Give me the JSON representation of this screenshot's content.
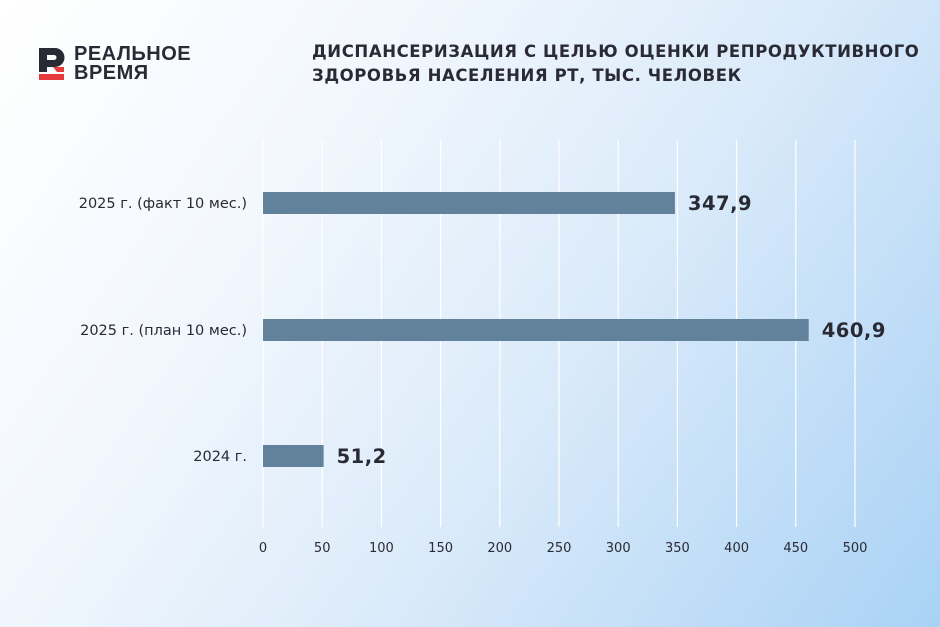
{
  "brand": {
    "line1": "РЕАЛЬНОЕ",
    "line2": "ВРЕМЯ",
    "colors": {
      "dark": "#2a2a35",
      "red": "#e63b3b"
    }
  },
  "title_lines": [
    "ДИСПАНСЕРИЗАЦИЯ С ЦЕЛЬЮ ОЦЕНКИ РЕПРОДУКТИВНОГО",
    "ЗДОРОВЬЯ НАСЕЛЕНИЯ РТ, ТЫС. ЧЕЛОВЕК"
  ],
  "chart_data": {
    "type": "bar",
    "orientation": "horizontal",
    "title": "ДИСПАНСЕРИЗАЦИЯ С ЦЕЛЬЮ ОЦЕНКИ РЕПРОДУКТИВНОГО ЗДОРОВЬЯ НАСЕЛЕНИЯ РТ, ТЫС. ЧЕЛОВЕК",
    "categories": [
      "2025 г. (факт 10 мес.)",
      "2025 г. (план 10 мес.)",
      "2024 г."
    ],
    "values": [
      347.9,
      460.9,
      51.2
    ],
    "value_labels": [
      "347,9",
      "460,9",
      "51,2"
    ],
    "xlim": [
      0,
      500
    ],
    "xticks": [
      0,
      50,
      100,
      150,
      200,
      250,
      300,
      350,
      400,
      450,
      500
    ],
    "grid": true,
    "legend": "none",
    "colors": {
      "bar": "#62829c",
      "gridline": "#ffffff",
      "label": "#2a2a35"
    }
  }
}
